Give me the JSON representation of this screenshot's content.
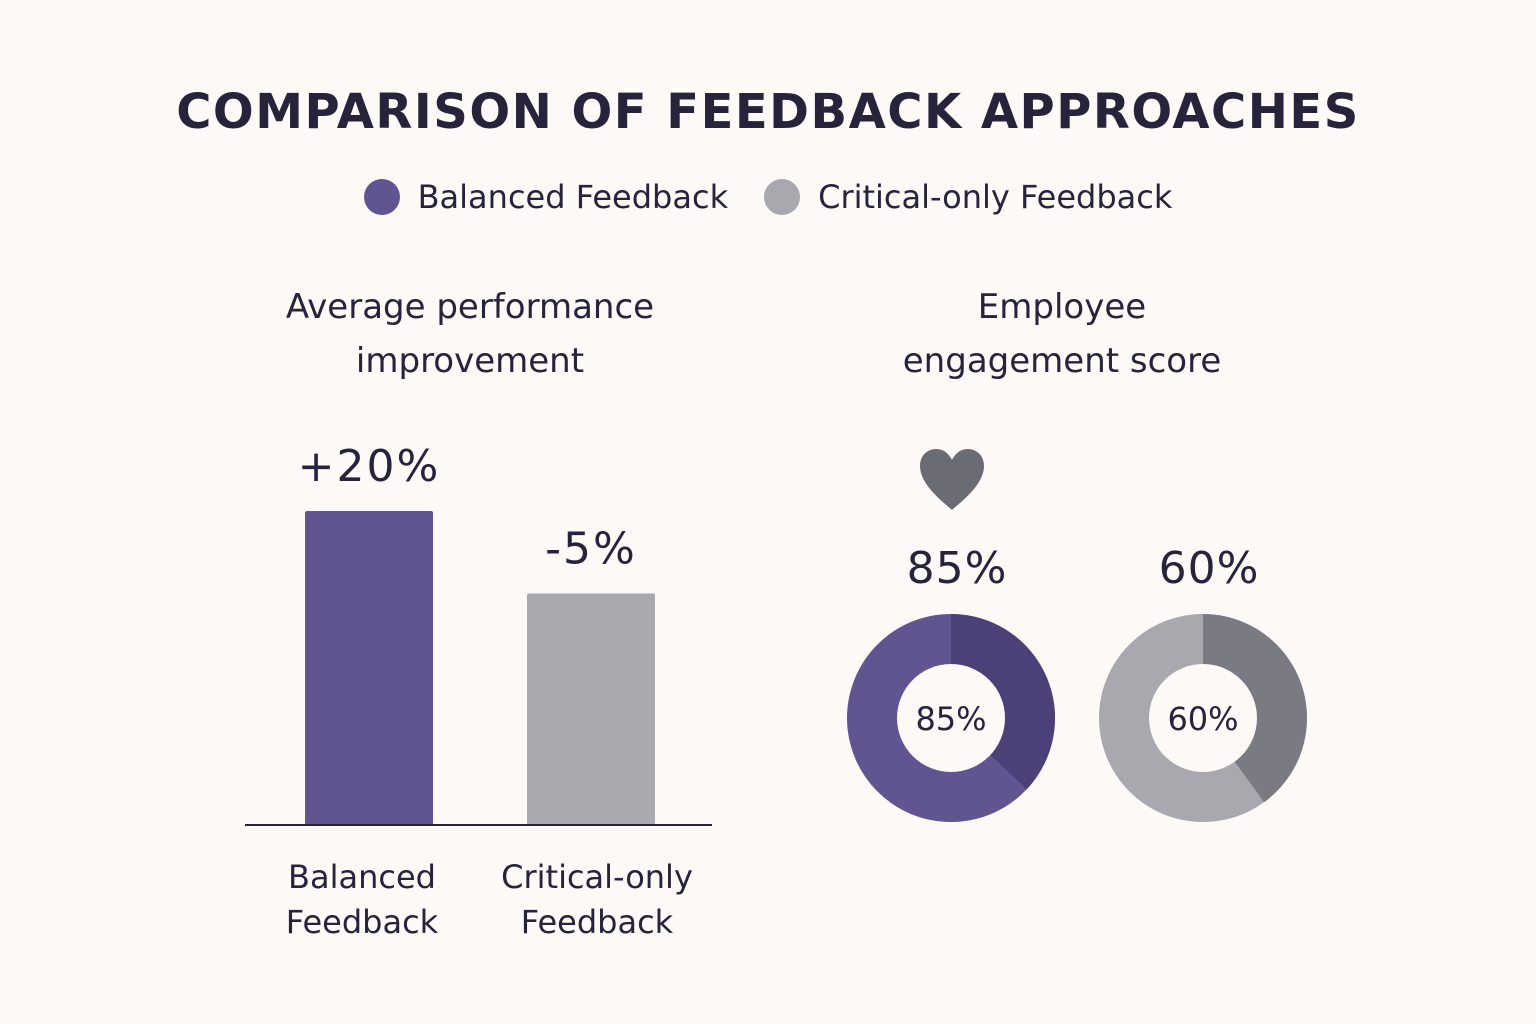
{
  "title": "COMPARISON OF FEEDBACK APPROACHES",
  "colors": {
    "balanced": "#605590",
    "balanced_dark": "#4b4178",
    "critical": "#a8a8ae",
    "critical_dark": "#7a7b82",
    "background": "#fcf9f6",
    "text": "#26233b",
    "heart": "#6b6c73"
  },
  "legend": [
    {
      "label": "Balanced Feedback",
      "color": "#605590"
    },
    {
      "label": "Critical-only Feedback",
      "color": "#a8a8ae"
    }
  ],
  "icons": {
    "engagement": "heart-icon"
  },
  "chart_data": [
    {
      "type": "bar",
      "title_lines": [
        "Average performance",
        "improvement"
      ],
      "categories": [
        [
          "Balanced",
          "Feedback"
        ],
        [
          "Critical-only",
          "Feedback"
        ]
      ],
      "values": [
        20,
        -5
      ],
      "value_labels": [
        "+20%",
        "-5%"
      ],
      "colors": [
        "#605590",
        "#a8a8ae"
      ]
    },
    {
      "type": "pie",
      "title_lines": [
        "Employee",
        "engagement score"
      ],
      "values": [
        85,
        60
      ],
      "value_labels": [
        "85%",
        "60%"
      ],
      "center_labels": [
        "85%",
        "60%"
      ],
      "colors": [
        "#605590",
        "#a8a8ae"
      ],
      "dark_colors": [
        "#4b4178",
        "#7a7b82"
      ]
    }
  ]
}
